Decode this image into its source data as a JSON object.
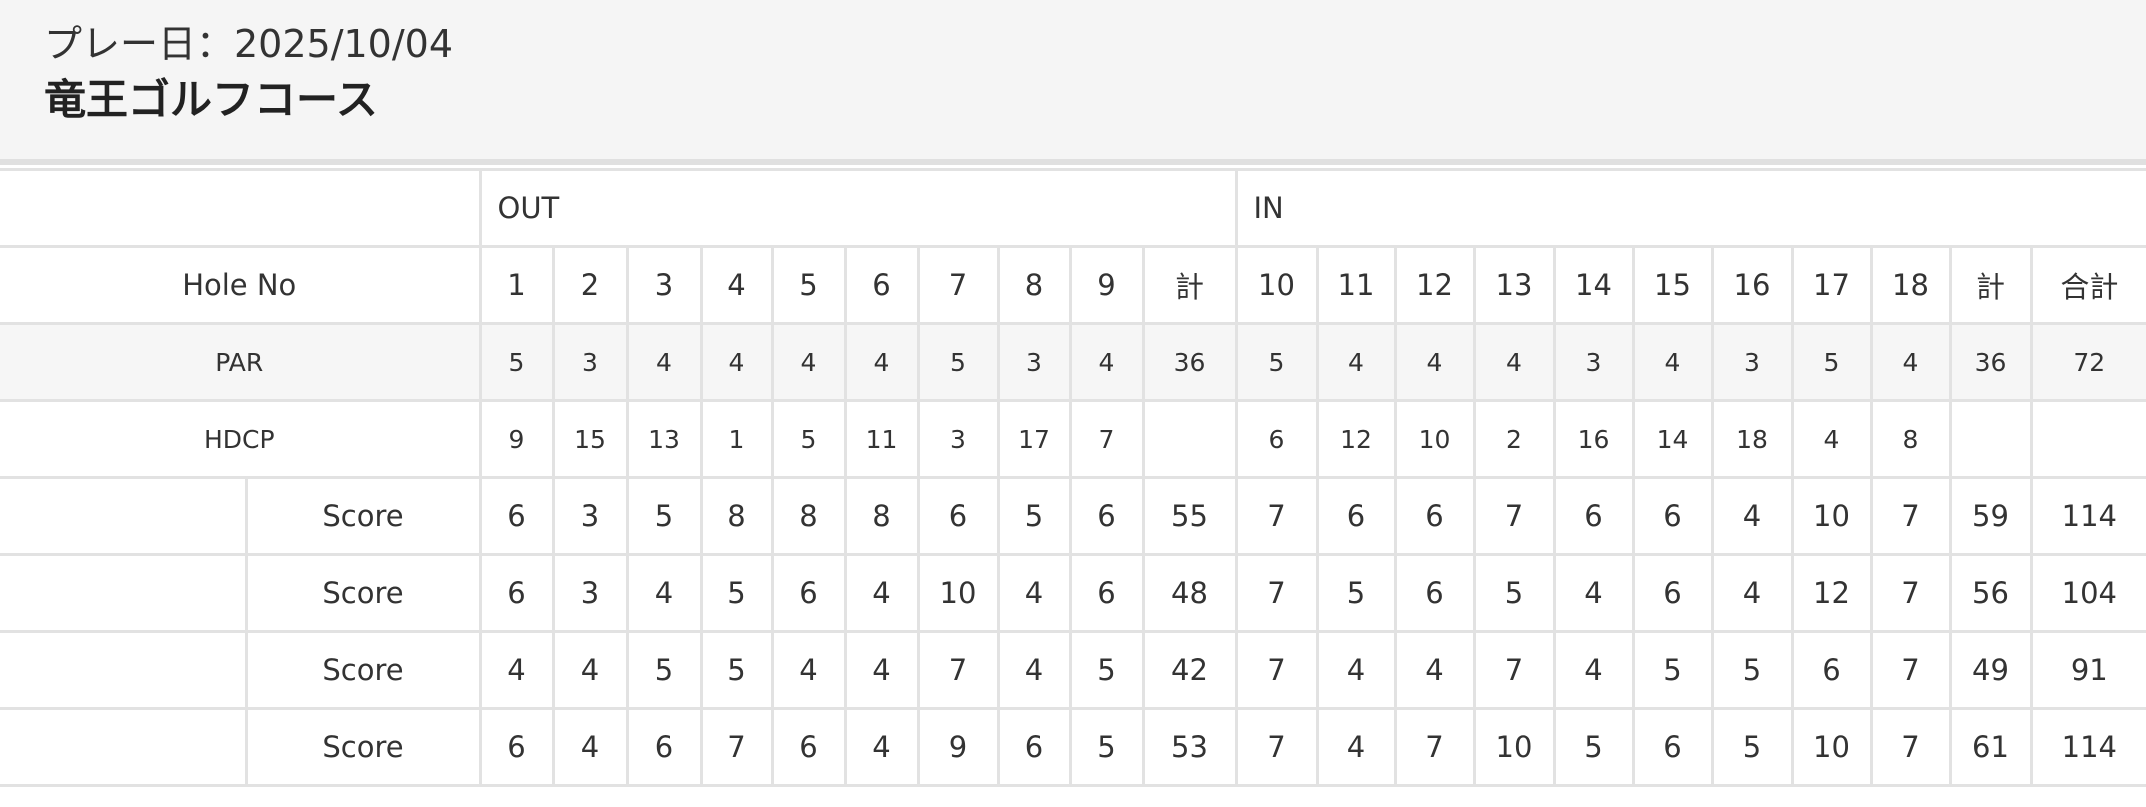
{
  "header": {
    "play_date": "プレー日：2025/10/04",
    "course_name": "竜王ゴルフコース"
  },
  "table": {
    "out_label": "OUT",
    "in_label": "IN",
    "hole_label": "Hole No",
    "holes": [
      "1",
      "2",
      "3",
      "4",
      "5",
      "6",
      "7",
      "8",
      "9",
      "計",
      "10",
      "11",
      "12",
      "13",
      "14",
      "15",
      "16",
      "17",
      "18",
      "計",
      "合計"
    ],
    "par_label": "PAR",
    "par": [
      "5",
      "3",
      "4",
      "4",
      "4",
      "4",
      "5",
      "3",
      "4",
      "36",
      "5",
      "4",
      "4",
      "4",
      "3",
      "4",
      "3",
      "5",
      "4",
      "36",
      "72"
    ],
    "hdcp_label": "HDCP",
    "hdcp": [
      "9",
      "15",
      "13",
      "1",
      "5",
      "11",
      "3",
      "17",
      "7",
      "",
      "6",
      "12",
      "10",
      "2",
      "16",
      "14",
      "18",
      "4",
      "8",
      "",
      ""
    ],
    "players": [
      {
        "name": "",
        "label": "Score",
        "scores": [
          "6",
          "3",
          "5",
          "8",
          "8",
          "8",
          "6",
          "5",
          "6",
          "55",
          "7",
          "6",
          "6",
          "7",
          "6",
          "6",
          "4",
          "10",
          "7",
          "59",
          "114"
        ]
      },
      {
        "name": "",
        "label": "Score",
        "scores": [
          "6",
          "3",
          "4",
          "5",
          "6",
          "4",
          "10",
          "4",
          "6",
          "48",
          "7",
          "5",
          "6",
          "5",
          "4",
          "6",
          "4",
          "12",
          "7",
          "56",
          "104"
        ]
      },
      {
        "name": "",
        "label": "Score",
        "scores": [
          "4",
          "4",
          "5",
          "5",
          "4",
          "4",
          "7",
          "4",
          "5",
          "42",
          "7",
          "4",
          "4",
          "7",
          "4",
          "5",
          "5",
          "6",
          "7",
          "49",
          "91"
        ]
      },
      {
        "name": "",
        "label": "Score",
        "scores": [
          "6",
          "4",
          "6",
          "7",
          "6",
          "4",
          "9",
          "6",
          "5",
          "53",
          "7",
          "4",
          "7",
          "10",
          "5",
          "6",
          "5",
          "10",
          "7",
          "61",
          "114"
        ]
      }
    ]
  }
}
